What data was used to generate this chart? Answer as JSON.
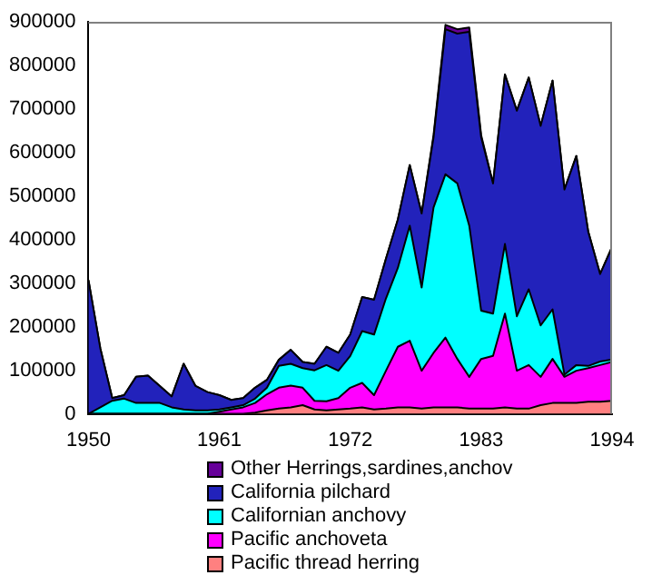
{
  "chart_data": {
    "type": "area",
    "stacked": true,
    "x": [
      1950,
      1951,
      1952,
      1953,
      1954,
      1955,
      1956,
      1957,
      1958,
      1959,
      1960,
      1961,
      1962,
      1963,
      1964,
      1965,
      1966,
      1967,
      1968,
      1969,
      1970,
      1971,
      1972,
      1973,
      1974,
      1975,
      1976,
      1977,
      1978,
      1979,
      1980,
      1981,
      1982,
      1983,
      1984,
      1985,
      1986,
      1987,
      1988,
      1989,
      1990,
      1991,
      1992,
      1993,
      1994
    ],
    "xlim": [
      1950,
      1994
    ],
    "xticks": [
      1950,
      1961,
      1972,
      1983,
      1994
    ],
    "ylim": [
      0,
      900000
    ],
    "yticks": [
      0,
      100000,
      200000,
      300000,
      400000,
      500000,
      600000,
      700000,
      800000,
      900000
    ],
    "grid": false,
    "legend": "bottom",
    "marker": "none",
    "series": [
      {
        "name": "Pacific thread herring",
        "color": "#ff8080",
        "values": [
          0,
          0,
          0,
          0,
          0,
          0,
          0,
          0,
          0,
          0,
          0,
          0,
          0,
          0,
          3000,
          8000,
          12000,
          15000,
          20000,
          10000,
          8000,
          10000,
          12000,
          15000,
          10000,
          12000,
          15000,
          15000,
          12000,
          15000,
          15000,
          15000,
          12000,
          12000,
          12000,
          15000,
          12000,
          12000,
          20000,
          25000,
          25000,
          25000,
          28000,
          28000,
          30000
        ]
      },
      {
        "name": "Pacific anchoveta",
        "color": "#ff00ff",
        "values": [
          0,
          0,
          0,
          0,
          0,
          0,
          0,
          0,
          0,
          0,
          0,
          5000,
          10000,
          15000,
          22000,
          37000,
          48000,
          50000,
          40000,
          20000,
          21000,
          26000,
          48000,
          56000,
          33000,
          87000,
          139000,
          153000,
          87000,
          125000,
          160000,
          111000,
          73000,
          114000,
          121000,
          215000,
          87000,
          100000,
          65000,
          101000,
          60000,
          74000,
          77000,
          84000,
          89000
        ]
      },
      {
        "name": "Californian anchovy",
        "color": "#00ffff",
        "values": [
          0,
          15000,
          30000,
          35000,
          25000,
          25000,
          25000,
          15000,
          10000,
          8000,
          8000,
          5000,
          5000,
          5000,
          10000,
          15000,
          50000,
          50000,
          45000,
          70000,
          83000,
          63000,
          73000,
          119000,
          139000,
          166000,
          181000,
          264000,
          191000,
          334000,
          375000,
          403000,
          347000,
          111000,
          97000,
          160000,
          125000,
          174000,
          118000,
          114000,
          5000,
          13000,
          5000,
          8000,
          6000
        ]
      },
      {
        "name": "California pilchard",
        "color": "#2222bb",
        "values": [
          307000,
          135000,
          6000,
          8000,
          60000,
          63000,
          39000,
          25000,
          105000,
          56000,
          42000,
          33000,
          17000,
          16000,
          25000,
          18000,
          14000,
          32000,
          14000,
          15000,
          42000,
          41000,
          49000,
          78000,
          80000,
          91000,
          111000,
          139000,
          170000,
          161000,
          333000,
          344000,
          445000,
          398000,
          299000,
          389000,
          472000,
          486000,
          458000,
          525000,
          425000,
          480000,
          308000,
          201000,
          258000
        ]
      },
      {
        "name": "Other Herrings,sardines,anchov",
        "color": "#660099",
        "values": [
          0,
          0,
          0,
          0,
          0,
          0,
          0,
          0,
          0,
          0,
          0,
          0,
          0,
          0,
          0,
          0,
          0,
          0,
          0,
          0,
          0,
          0,
          0,
          0,
          0,
          0,
          0,
          0,
          0,
          5000,
          10000,
          10000,
          10000,
          5000,
          0,
          0,
          0,
          0,
          0,
          0,
          0,
          0,
          0,
          0,
          0
        ]
      }
    ]
  }
}
